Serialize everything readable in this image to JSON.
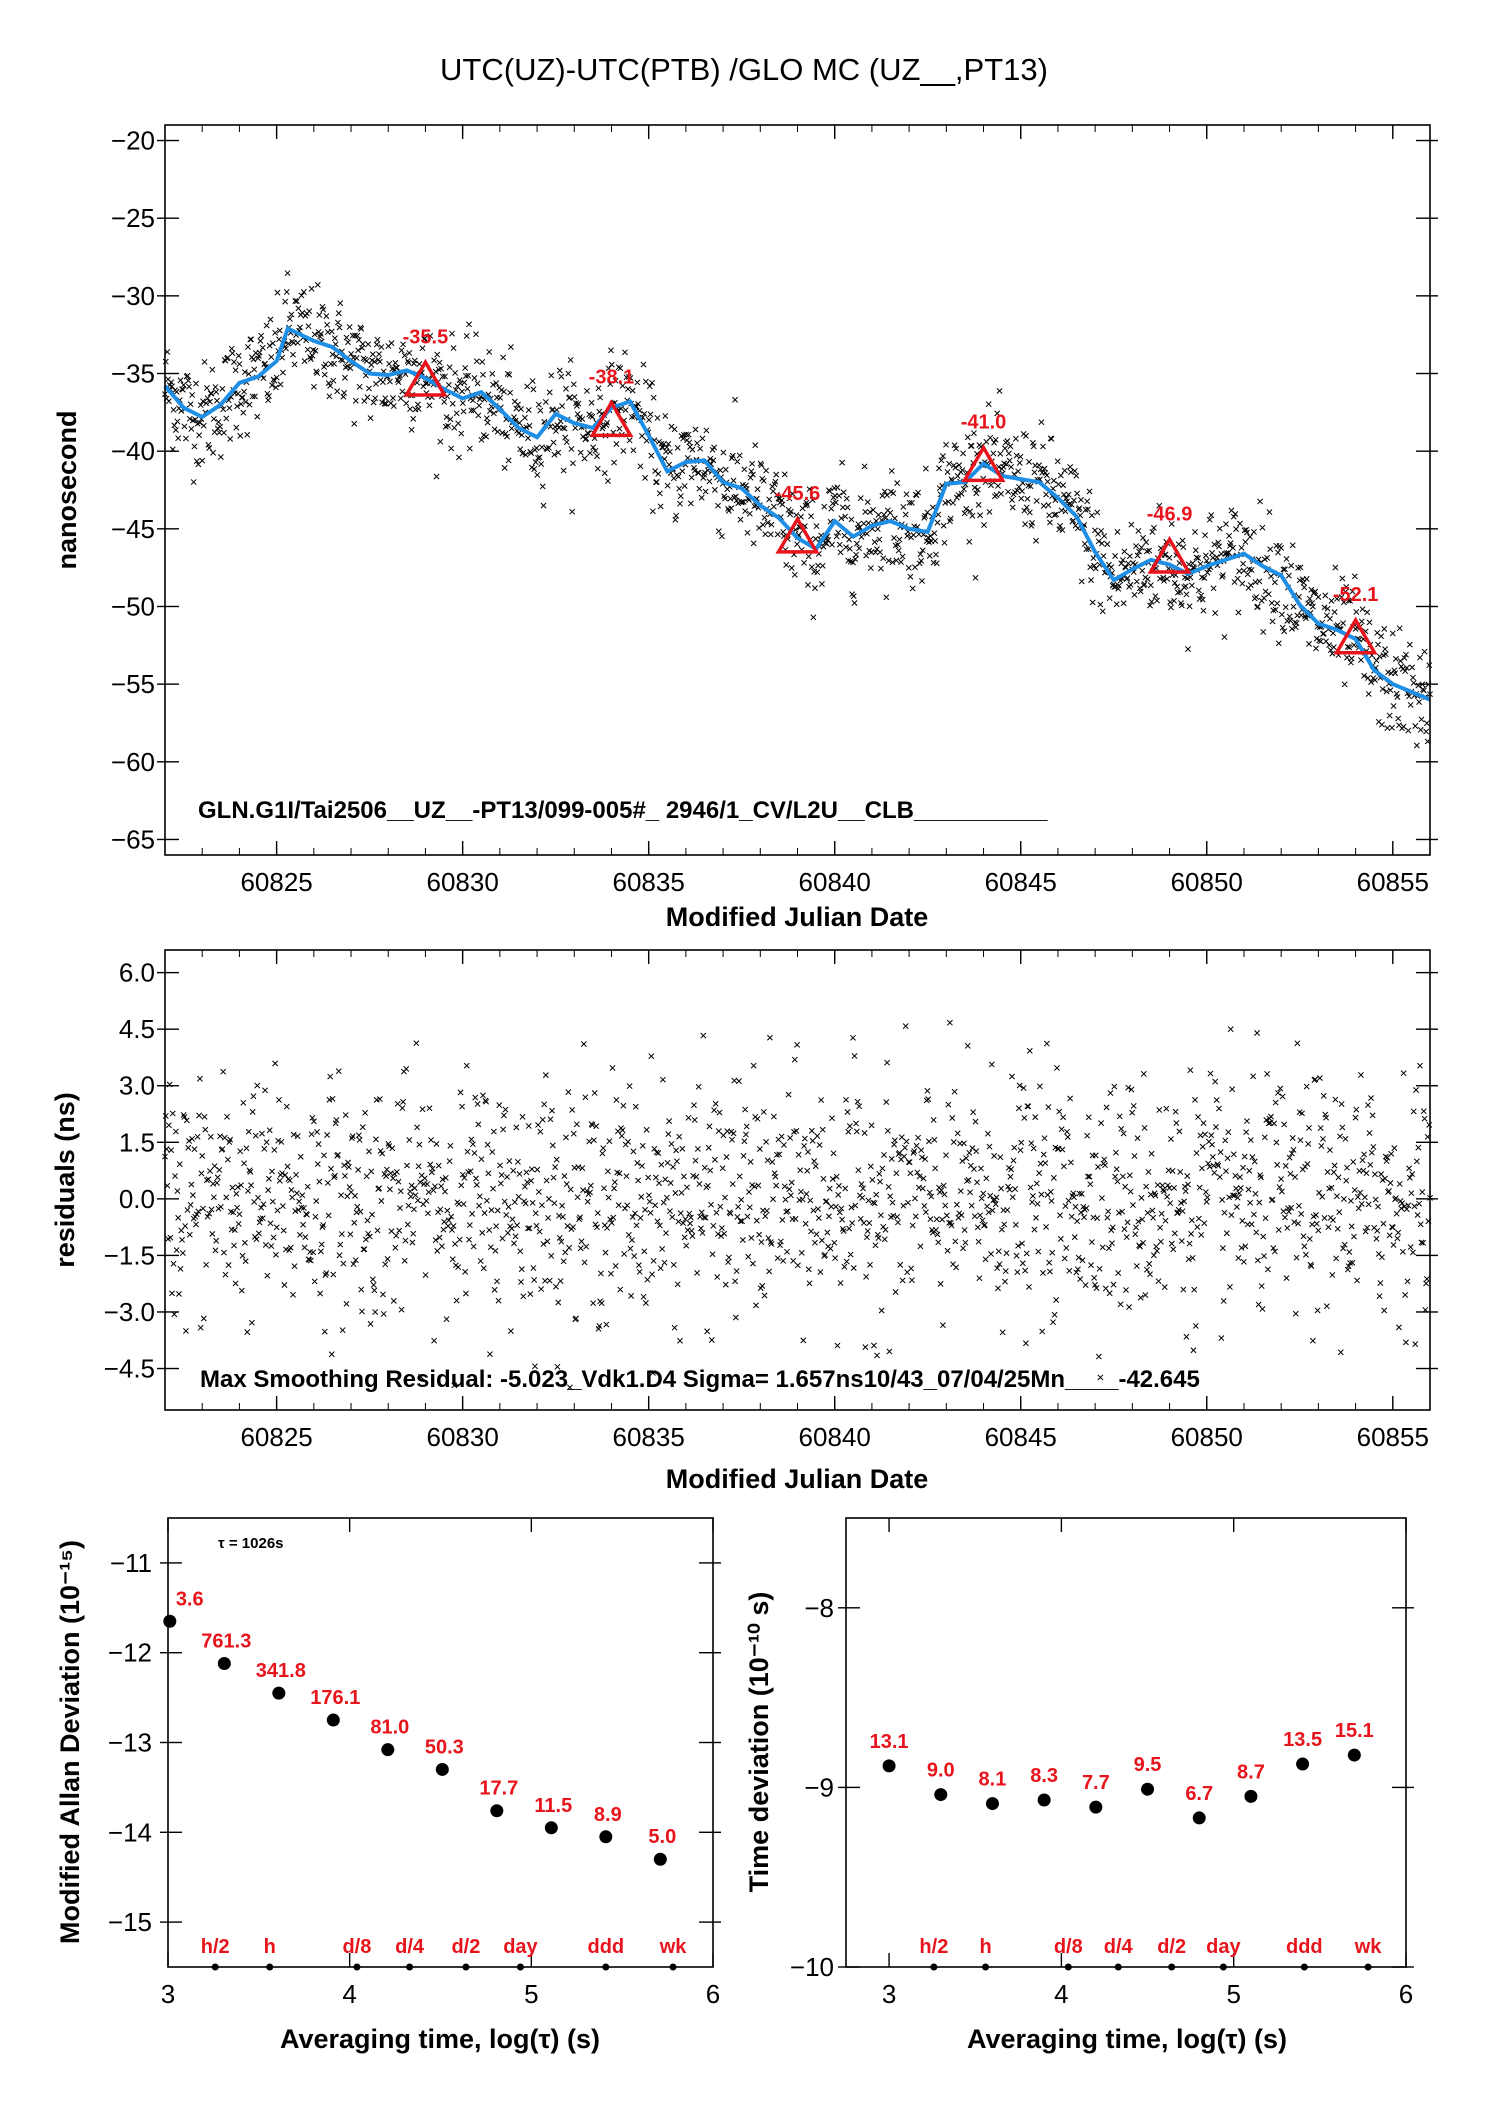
{
  "page": {
    "title": "UTC(UZ)-UTC(PTB)  /GLO  MC  (UZ__,PT13)"
  },
  "colors": {
    "smooth": "#1f8fe6",
    "marker": "#e8141c",
    "points": "#000000"
  },
  "chart_data": [
    {
      "type": "scatter",
      "name": "top",
      "xlabel": "Modified Julian Date",
      "ylabel": "nanosecond",
      "xlim": [
        60822,
        60856
      ],
      "ylim": [
        -66,
        -19
      ],
      "xticks": [
        60825,
        60830,
        60835,
        60840,
        60845,
        60850,
        60855
      ],
      "yticks": [
        -20,
        -25,
        -30,
        -35,
        -40,
        -45,
        -50,
        -55,
        -60,
        -65
      ],
      "note": "GLN.G1I/Tai2506__UZ__-PT13/099-005#_  2946/1_CV/L2U__CLB__________",
      "smooth": {
        "x": [
          60822,
          60822.5,
          60823,
          60823.5,
          60824,
          60824.5,
          60825,
          60825.3,
          60826,
          60826.5,
          60827,
          60827.5,
          60828,
          60828.5,
          60829,
          60829.5,
          60830,
          60830.5,
          60831,
          60831.5,
          60832,
          60832.5,
          60833,
          60833.5,
          60834,
          60834.5,
          60835,
          60835.5,
          60836,
          60836.5,
          60837,
          60837.5,
          60838,
          60838.5,
          60839,
          60839.5,
          60840,
          60840.5,
          60841,
          60841.5,
          60842,
          60842.5,
          60843,
          60843.5,
          60844,
          60844.5,
          60845,
          60845.5,
          60846,
          60846.5,
          60847,
          60847.5,
          60848,
          60848.5,
          60849,
          60849.5,
          60850,
          60850.5,
          60851,
          60851.5,
          60852,
          60852.5,
          60853,
          60853.5,
          60854,
          60854.5,
          60855,
          60855.5,
          60856
        ],
        "y": [
          -35.8,
          -37.2,
          -37.8,
          -37.0,
          -35.6,
          -35.2,
          -34.2,
          -32.1,
          -32.9,
          -33.3,
          -34.2,
          -35.0,
          -35.1,
          -34.8,
          -35.3,
          -36.0,
          -36.6,
          -36.2,
          -37.3,
          -38.5,
          -39.1,
          -37.6,
          -38.2,
          -38.5,
          -37.2,
          -36.8,
          -39.0,
          -41.3,
          -40.7,
          -40.6,
          -42.0,
          -42.4,
          -43.5,
          -44.3,
          -45.6,
          -46.3,
          -44.5,
          -45.5,
          -44.8,
          -44.5,
          -45.0,
          -45.2,
          -42.1,
          -42.0,
          -40.8,
          -41.6,
          -41.8,
          -42.0,
          -43.0,
          -44.2,
          -46.5,
          -48.3,
          -47.6,
          -47.0,
          -47.3,
          -47.9,
          -47.4,
          -47.0,
          -46.6,
          -47.4,
          -48.0,
          -49.9,
          -51.1,
          -51.5,
          -52.1,
          -54.1,
          -55.0,
          -55.5,
          -56.0
        ]
      },
      "markers": {
        "x": [
          60829,
          60834,
          60839,
          60844,
          60849,
          60854
        ],
        "y": [
          -35.5,
          -38.1,
          -45.6,
          -41.0,
          -46.9,
          -52.1
        ],
        "labels": [
          "-35.5",
          "-38.1",
          "-45.6",
          "-41.0",
          "-46.9",
          "-52.1"
        ]
      },
      "scatter_spread_ns": 1.7
    },
    {
      "type": "scatter",
      "name": "residuals",
      "xlabel": "Modified Julian Date",
      "ylabel": "residuals (ns)",
      "xlim": [
        60822,
        60856
      ],
      "ylim": [
        -5.6,
        6.6
      ],
      "xticks": [
        60825,
        60830,
        60835,
        60840,
        60845,
        60850,
        60855
      ],
      "yticks": [
        6.0,
        4.5,
        3.0,
        1.5,
        0.0,
        -1.5,
        -3.0,
        -4.5
      ],
      "yticklabels": [
        "6.0",
        "4.5",
        "3.0",
        "1.5",
        "0.0",
        "-1.5",
        "-3.0",
        "-4.5"
      ],
      "note": "Max Smoothing Residual: -5.023_Vdk1.D4  Sigma= 1.657ns10/43_07/04/25Mn____-42.645",
      "sigma": 1.657
    },
    {
      "type": "scatter",
      "name": "mdev",
      "xlabel": "Averaging time, log(τ) (s)",
      "ylabel": "Modified Allan Deviation (10⁻¹⁵)",
      "xlim": [
        3,
        6
      ],
      "ylim": [
        -15.5,
        -10.5
      ],
      "xticks": [
        3,
        4,
        5,
        6
      ],
      "yticks": [
        -11,
        -12,
        -13,
        -14,
        -15
      ],
      "tau_note": "τ = 1026s",
      "points": {
        "x": [
          3.01,
          3.31,
          3.61,
          3.91,
          4.21,
          4.51,
          4.81,
          5.11,
          5.41,
          5.71
        ],
        "y": [
          -11.65,
          -12.12,
          -12.45,
          -12.75,
          -13.08,
          -13.3,
          -13.76,
          -13.95,
          -14.05,
          -14.3
        ],
        "labels": [
          "3.6",
          "761.3",
          "341.8",
          "176.1",
          "81.0",
          "50.3",
          "17.7",
          "11.5",
          "8.9",
          "5.0"
        ]
      },
      "bottom_marks": {
        "x": [
          3.26,
          3.56,
          4.04,
          4.33,
          4.64,
          4.94,
          5.41,
          5.78
        ],
        "labels": [
          "h/2",
          "h",
          "d/8",
          "d/4",
          "d/2",
          "day",
          "ddd",
          "wk"
        ]
      }
    },
    {
      "type": "scatter",
      "name": "tdev",
      "xlabel": "Averaging time, log(τ) (s)",
      "ylabel": "Time deviation (10⁻¹⁰ s)",
      "xlim": [
        2.75,
        6
      ],
      "ylim": [
        -10,
        -7.5
      ],
      "xticks": [
        3,
        4,
        5,
        6
      ],
      "yticks": [
        -8,
        -9,
        -10
      ],
      "points": {
        "x": [
          3.0,
          3.3,
          3.6,
          3.9,
          4.2,
          4.5,
          4.8,
          5.1,
          5.4,
          5.7
        ],
        "y": [
          -8.88,
          -9.04,
          -9.09,
          -9.07,
          -9.11,
          -9.01,
          -9.17,
          -9.05,
          -8.87,
          -8.82
        ],
        "labels": [
          "13.1",
          "9.0",
          "8.1",
          "8.3",
          "7.7",
          "9.5",
          "6.7",
          "8.7",
          "13.5",
          "15.1"
        ]
      },
      "bottom_marks": {
        "x": [
          3.26,
          3.56,
          4.04,
          4.33,
          4.64,
          4.94,
          5.41,
          5.78
        ],
        "labels": [
          "h/2",
          "h",
          "d/8",
          "d/4",
          "d/2",
          "day",
          "ddd",
          "wk"
        ]
      }
    }
  ]
}
